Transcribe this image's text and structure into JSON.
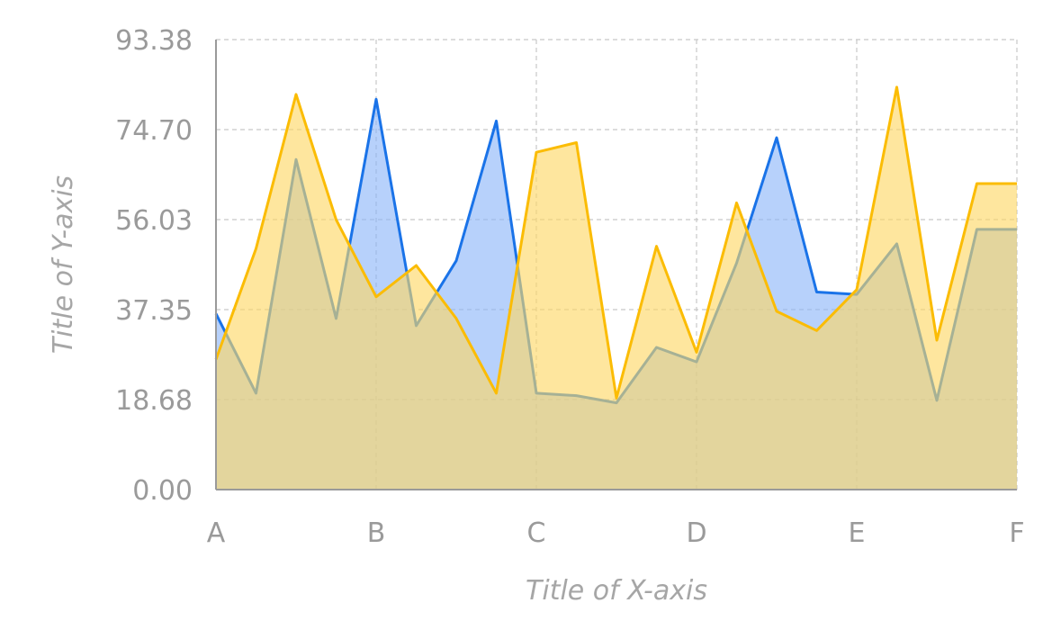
{
  "chart_data": {
    "type": "area",
    "title": "",
    "xlabel": "Title of X-axis",
    "ylabel": "Title of Y-axis",
    "x_tick_labels": [
      "A",
      "B",
      "C",
      "D",
      "E",
      "F"
    ],
    "x_range": [
      0,
      5
    ],
    "y_ticks": [
      "0.00",
      "18.68",
      "37.35",
      "56.03",
      "74.70",
      "93.38"
    ],
    "ylim": [
      0,
      93.38
    ],
    "grid": true,
    "legend": "none",
    "x": [
      0,
      0.25,
      0.5,
      0.75,
      1.0,
      1.25,
      1.5,
      1.75,
      2.0,
      2.25,
      2.5,
      2.75,
      3.0,
      3.25,
      3.5,
      3.75,
      4.0,
      4.25,
      4.5,
      4.75,
      5.0
    ],
    "series": [
      {
        "color_line": "#1a73e8",
        "color_fill": "#8ab4f8",
        "values": [
          36.5,
          20.0,
          68.5,
          35.5,
          81.0,
          34.0,
          47.5,
          76.5,
          20.0,
          19.5,
          18.0,
          29.5,
          26.5,
          47.0,
          73.0,
          41.0,
          40.5,
          51.0,
          18.5,
          54.0,
          54.0
        ]
      },
      {
        "color_line": "#fbbc04",
        "color_fill": "#fdd663",
        "values": [
          27.0,
          50.0,
          82.0,
          56.0,
          40.0,
          46.5,
          35.5,
          20.0,
          70.0,
          72.0,
          19.0,
          50.5,
          28.5,
          59.5,
          37.0,
          33.0,
          41.5,
          83.5,
          31.0,
          63.5,
          63.5
        ]
      }
    ]
  }
}
